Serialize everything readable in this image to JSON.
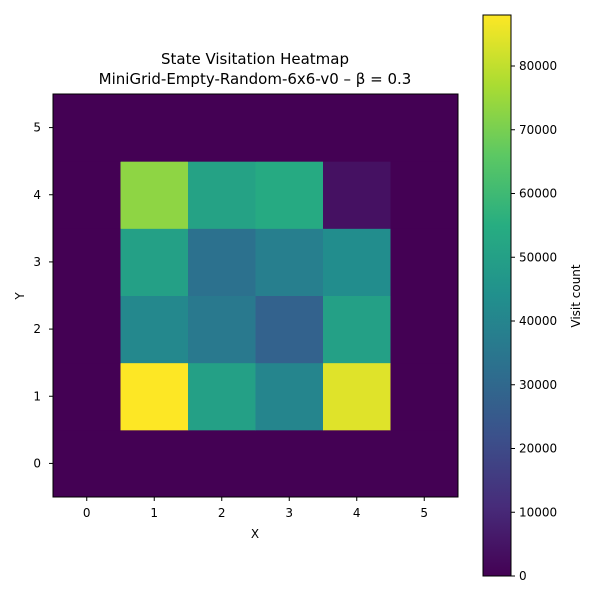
{
  "chart_data": {
    "type": "heatmap",
    "title": "State Visitation Heatmap",
    "subtitle": "MiniGrid-Empty-Random-6x6-v0 – β = 0.3",
    "xlabel": "X",
    "ylabel": "Y",
    "colorbar_label": "Visit count",
    "colormap": "viridis",
    "x": [
      0,
      1,
      2,
      3,
      4,
      5
    ],
    "y": [
      0,
      1,
      2,
      3,
      4,
      5
    ],
    "x_tick_labels": [
      "0",
      "1",
      "2",
      "3",
      "4",
      "5"
    ],
    "y_tick_labels": [
      "0",
      "1",
      "2",
      "3",
      "4",
      "5"
    ],
    "xlim": [
      -0.5,
      5.5
    ],
    "ylim": [
      -0.5,
      5.5
    ],
    "vmin": 0,
    "vmax": 88000,
    "colorbar_ticks": [
      0,
      10000,
      20000,
      30000,
      40000,
      50000,
      60000,
      70000,
      80000
    ],
    "colorbar_tick_labels": [
      "0",
      "10000",
      "20000",
      "30000",
      "40000",
      "50000",
      "60000",
      "70000",
      "80000"
    ],
    "values": [
      [
        0,
        0,
        0,
        0,
        0,
        0
      ],
      [
        0,
        88000,
        50000,
        40000,
        84000,
        0
      ],
      [
        0,
        41000,
        36000,
        28000,
        50000,
        0
      ],
      [
        0,
        50000,
        33000,
        38000,
        43000,
        0
      ],
      [
        0,
        73000,
        51000,
        54000,
        4000,
        0
      ],
      [
        0,
        0,
        0,
        0,
        0,
        0
      ]
    ],
    "grid": false
  }
}
